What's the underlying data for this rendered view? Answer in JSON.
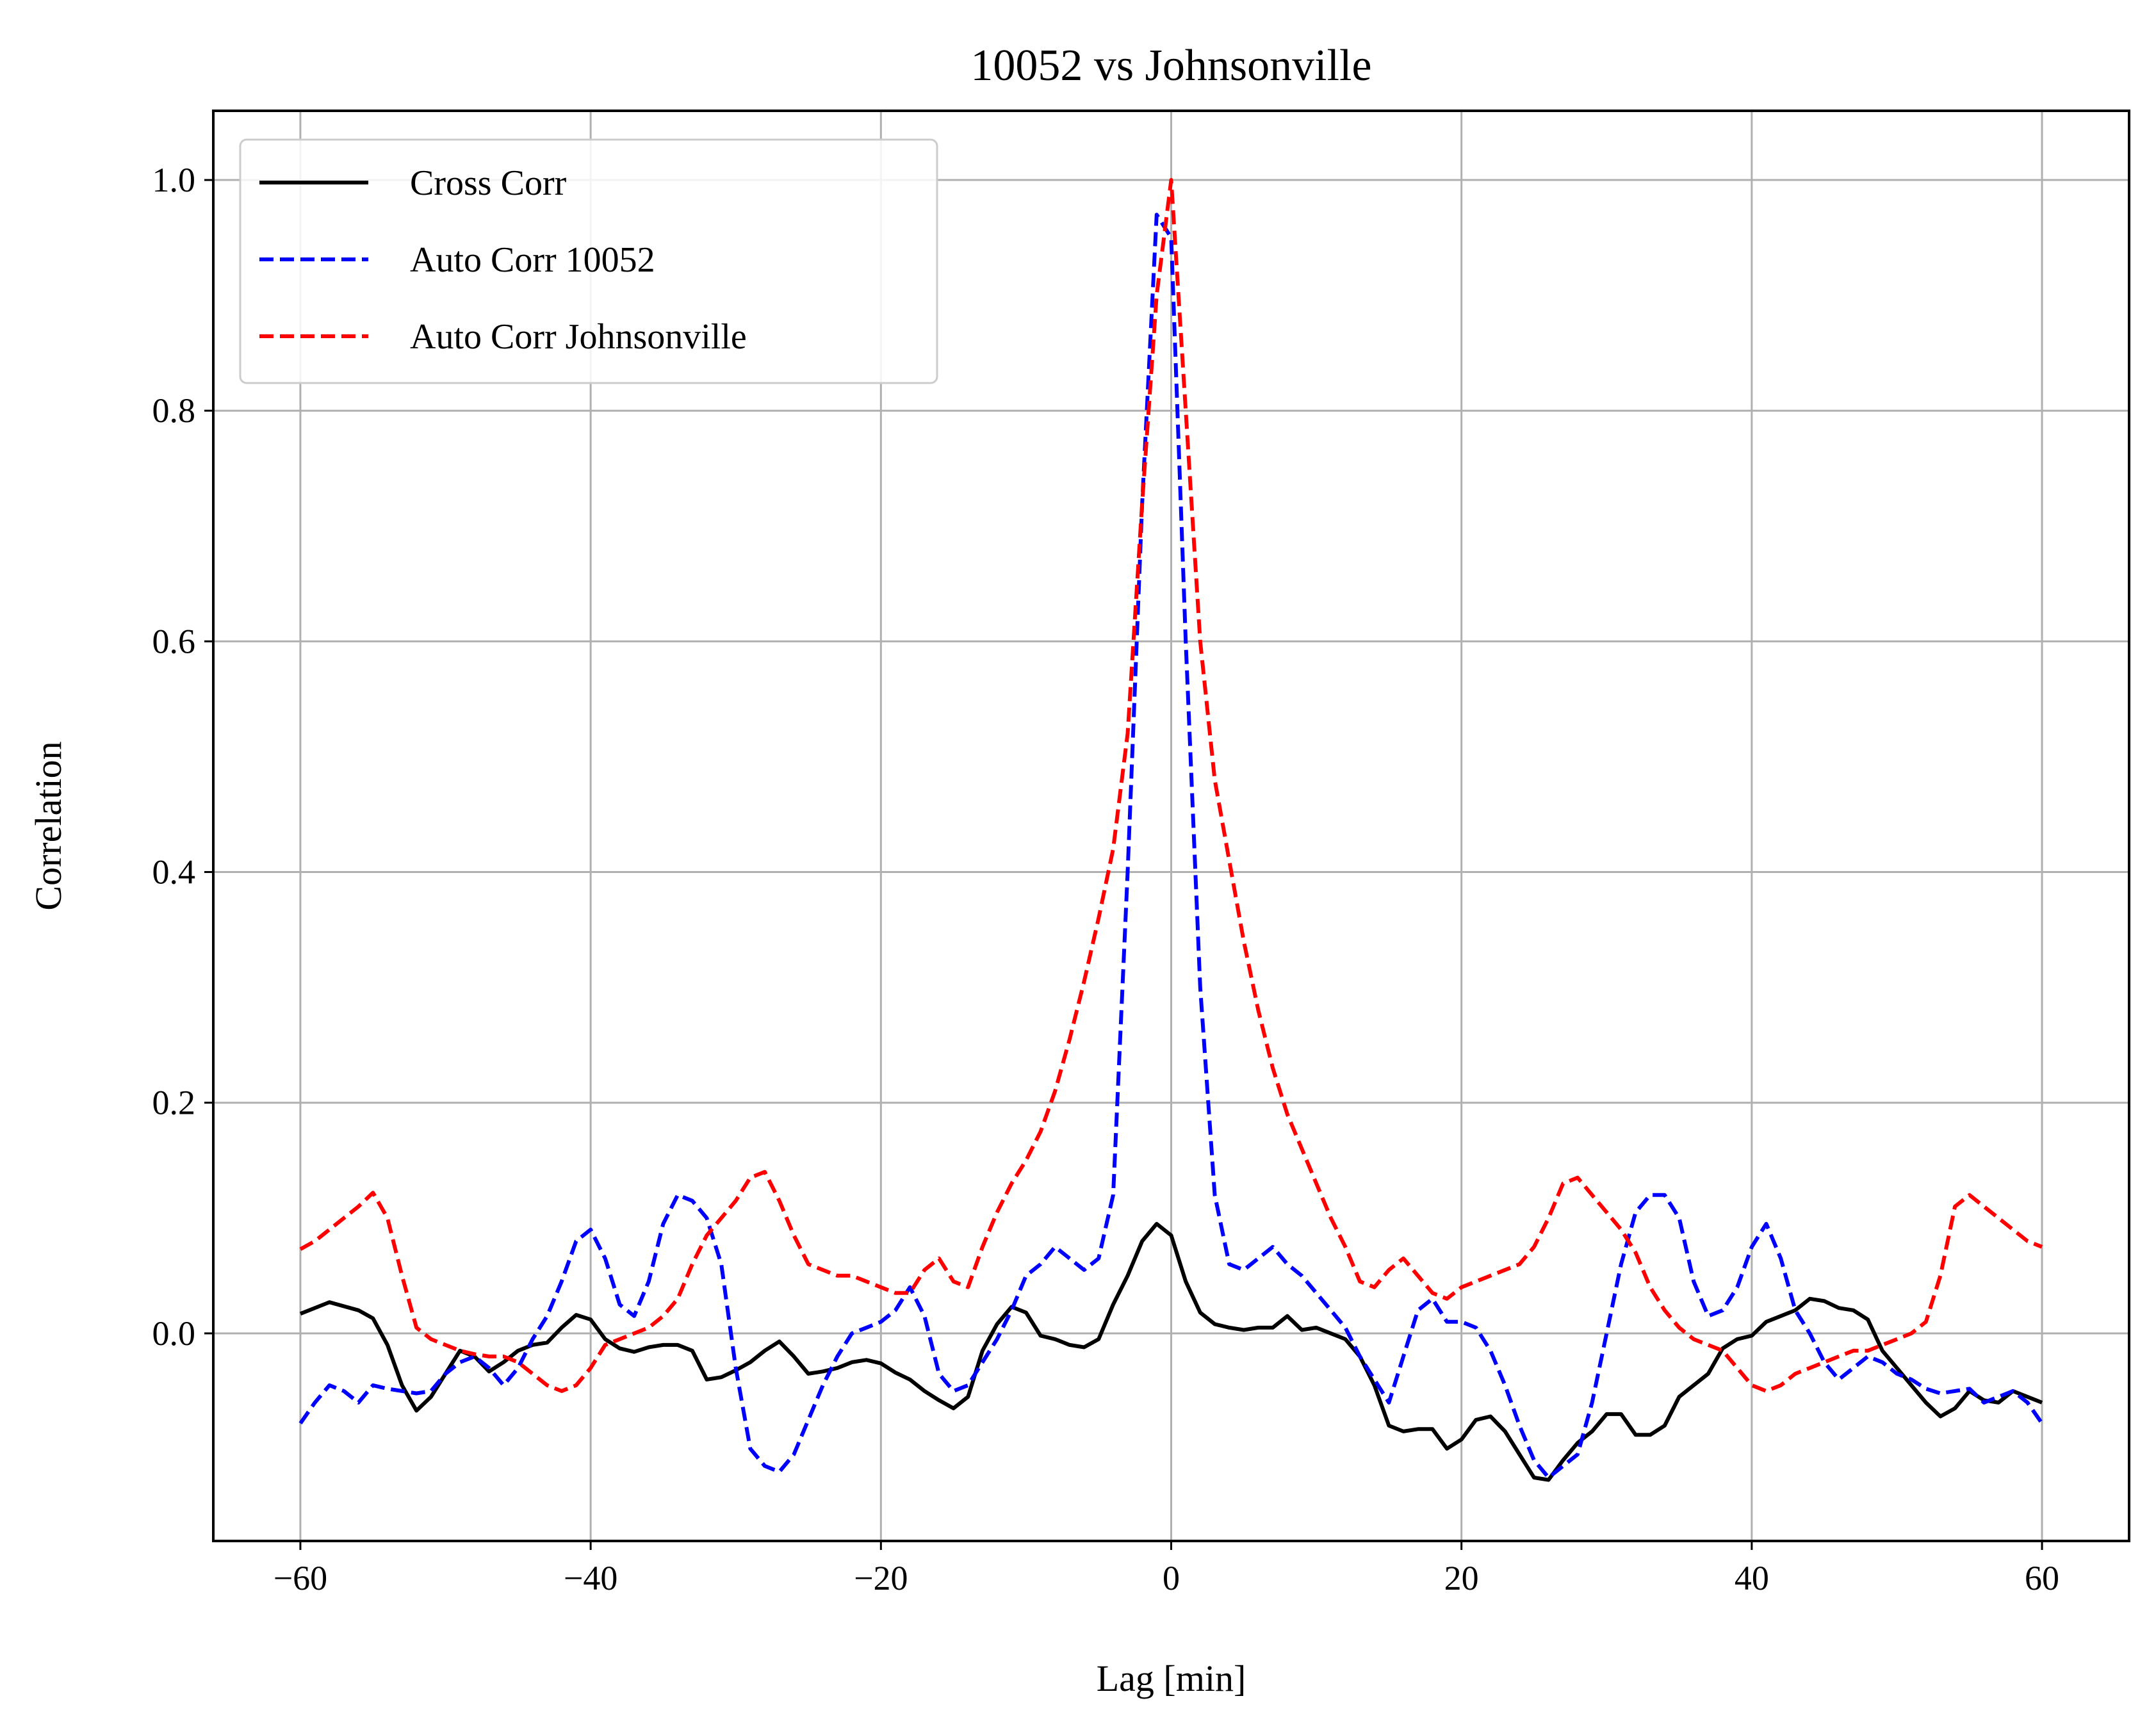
{
  "chart_data": {
    "type": "line",
    "title": "10052 vs Johnsonville",
    "xlabel": "Lag [min]",
    "ylabel": "Correlation",
    "xlim": [
      -66,
      66
    ],
    "ylim": [
      -0.18,
      1.06
    ],
    "x_ticks": [
      -60,
      -40,
      -20,
      0,
      20,
      40,
      60
    ],
    "x_tick_labels": [
      "−60",
      "−40",
      "−20",
      "0",
      "20",
      "40",
      "60"
    ],
    "y_ticks": [
      0.0,
      0.2,
      0.4,
      0.6,
      0.8,
      1.0
    ],
    "y_tick_labels": [
      "0.0",
      "0.2",
      "0.4",
      "0.6",
      "0.8",
      "1.0"
    ],
    "grid": true,
    "legend_position": "top-left",
    "series": [
      {
        "name": "Cross Corr",
        "color": "#000000",
        "style": "solid",
        "x": [
          -60,
          -58,
          -56,
          -55,
          -54,
          -53,
          -52,
          -51,
          -50,
          -49,
          -48,
          -47,
          -46,
          -45,
          -44,
          -43,
          -42,
          -41,
          -40,
          -39,
          -38,
          -37,
          -36,
          -35,
          -34,
          -33,
          -32,
          -31,
          -30,
          -29,
          -28,
          -27,
          -26,
          -25,
          -24,
          -23,
          -22,
          -21,
          -20,
          -19,
          -18,
          -17,
          -16,
          -15,
          -14,
          -13,
          -12,
          -11,
          -10,
          -9,
          -8,
          -7,
          -6,
          -5,
          -4,
          -3,
          -2,
          -1,
          0,
          1,
          2,
          3,
          4,
          5,
          6,
          7,
          8,
          9,
          10,
          11,
          12,
          13,
          14,
          15,
          16,
          17,
          18,
          19,
          20,
          21,
          22,
          23,
          24,
          25,
          26,
          27,
          28,
          29,
          30,
          31,
          32,
          33,
          34,
          35,
          36,
          37,
          38,
          39,
          40,
          41,
          42,
          43,
          44,
          45,
          46,
          47,
          48,
          49,
          50,
          51,
          52,
          53,
          54,
          55,
          56,
          57,
          58,
          59,
          60
        ],
        "y": [
          0.017,
          0.027,
          0.02,
          0.013,
          -0.01,
          -0.045,
          -0.067,
          -0.055,
          -0.035,
          -0.015,
          -0.02,
          -0.033,
          -0.025,
          -0.015,
          -0.01,
          -0.008,
          0.005,
          0.016,
          0.012,
          -0.005,
          -0.013,
          -0.016,
          -0.012,
          -0.01,
          -0.01,
          -0.015,
          -0.04,
          -0.038,
          -0.032,
          -0.025,
          -0.015,
          -0.007,
          -0.02,
          -0.035,
          -0.033,
          -0.03,
          -0.025,
          -0.023,
          -0.026,
          -0.034,
          -0.04,
          -0.05,
          -0.058,
          -0.065,
          -0.055,
          -0.015,
          0.008,
          0.023,
          0.018,
          -0.002,
          -0.005,
          -0.01,
          -0.012,
          -0.005,
          0.025,
          0.05,
          0.08,
          0.095,
          0.085,
          0.045,
          0.018,
          0.008,
          0.005,
          0.003,
          0.005,
          0.005,
          0.015,
          0.003,
          0.005,
          0.0,
          -0.005,
          -0.02,
          -0.045,
          -0.08,
          -0.085,
          -0.083,
          -0.083,
          -0.1,
          -0.092,
          -0.075,
          -0.072,
          -0.085,
          -0.105,
          -0.125,
          -0.127,
          -0.11,
          -0.095,
          -0.085,
          -0.07,
          -0.07,
          -0.088,
          -0.088,
          -0.08,
          -0.055,
          -0.045,
          -0.035,
          -0.013,
          -0.005,
          -0.002,
          0.01,
          0.015,
          0.02,
          0.03,
          0.028,
          0.022,
          0.02,
          0.012,
          -0.015,
          -0.03,
          -0.045,
          -0.06,
          -0.072,
          -0.065,
          -0.05,
          -0.058,
          -0.06,
          -0.05,
          -0.055,
          -0.06
        ],
        "y_note": ""
      },
      {
        "name": "Auto Corr 10052",
        "color": "#0000ff",
        "style": "dashed",
        "x": [
          -60,
          -59,
          -58,
          -57,
          -56,
          -55,
          -54,
          -53,
          -52,
          -51,
          -50,
          -49,
          -48,
          -47,
          -46,
          -45,
          -44,
          -43,
          -42,
          -41,
          -40,
          -39,
          -38,
          -37,
          -36,
          -35,
          -34,
          -33,
          -32,
          -31,
          -30,
          -29,
          -28,
          -27,
          -26,
          -25,
          -24,
          -23,
          -22,
          -21,
          -20,
          -19,
          -18,
          -17,
          -16,
          -15,
          -14,
          -13,
          -12,
          -11,
          -10,
          -9,
          -8,
          -7,
          -6,
          -5,
          -4,
          -3,
          -2,
          -1,
          0,
          1,
          2,
          3,
          4,
          5,
          6,
          7,
          8,
          9,
          10,
          11,
          12,
          13,
          14,
          15,
          16,
          17,
          18,
          19,
          20,
          21,
          22,
          23,
          24,
          25,
          26,
          27,
          28,
          29,
          30,
          31,
          32,
          33,
          34,
          35,
          36,
          37,
          38,
          39,
          40,
          41,
          42,
          43,
          44,
          45,
          46,
          47,
          48,
          49,
          50,
          51,
          52,
          53,
          54,
          55,
          56,
          57,
          58,
          59,
          60
        ],
        "y": [
          -0.078,
          -0.06,
          -0.045,
          -0.05,
          -0.06,
          -0.045,
          -0.048,
          -0.05,
          -0.052,
          -0.05,
          -0.035,
          -0.025,
          -0.02,
          -0.03,
          -0.045,
          -0.03,
          -0.005,
          0.015,
          0.045,
          0.08,
          0.09,
          0.065,
          0.025,
          0.015,
          0.045,
          0.095,
          0.12,
          0.115,
          0.1,
          0.06,
          -0.03,
          -0.1,
          -0.115,
          -0.12,
          -0.105,
          -0.075,
          -0.045,
          -0.02,
          0.0,
          0.005,
          0.01,
          0.02,
          0.04,
          0.015,
          -0.035,
          -0.05,
          -0.045,
          -0.025,
          -0.005,
          0.02,
          0.05,
          0.06,
          0.075,
          0.065,
          0.055,
          0.065,
          0.12,
          0.4,
          0.72,
          0.97,
          0.95,
          0.6,
          0.3,
          0.12,
          0.06,
          0.055,
          0.065,
          0.075,
          0.06,
          0.05,
          0.035,
          0.02,
          0.005,
          -0.02,
          -0.04,
          -0.06,
          -0.02,
          0.02,
          0.03,
          0.01,
          0.01,
          0.005,
          -0.015,
          -0.045,
          -0.08,
          -0.11,
          -0.125,
          -0.115,
          -0.105,
          -0.06,
          0.0,
          0.06,
          0.105,
          0.12,
          0.12,
          0.1,
          0.045,
          0.015,
          0.02,
          0.04,
          0.075,
          0.095,
          0.065,
          0.02,
          0.0,
          -0.025,
          -0.04,
          -0.03,
          -0.02,
          -0.025,
          -0.035,
          -0.04,
          -0.048,
          -0.052,
          -0.05,
          -0.048,
          -0.06,
          -0.055,
          -0.05,
          -0.06,
          -0.078
        ],
        "y_note": ""
      },
      {
        "name": "Auto Corr Johnsonville",
        "color": "#ff0000",
        "style": "dashed",
        "x": [
          -60,
          -59,
          -58,
          -57,
          -56,
          -55,
          -54,
          -53,
          -52,
          -51,
          -50,
          -49,
          -48,
          -47,
          -46,
          -45,
          -44,
          -43,
          -42,
          -41,
          -40,
          -39,
          -38,
          -37,
          -36,
          -35,
          -34,
          -33,
          -32,
          -31,
          -30,
          -29,
          -28,
          -27,
          -26,
          -25,
          -24,
          -23,
          -22,
          -21,
          -20,
          -19,
          -18,
          -17,
          -16,
          -15,
          -14,
          -13,
          -12,
          -11,
          -10,
          -9,
          -8,
          -7,
          -6,
          -5,
          -4,
          -3,
          -2,
          -1,
          0,
          1,
          2,
          3,
          4,
          5,
          6,
          7,
          8,
          9,
          10,
          11,
          12,
          13,
          14,
          15,
          16,
          17,
          18,
          19,
          20,
          21,
          22,
          23,
          24,
          25,
          26,
          27,
          28,
          29,
          30,
          31,
          32,
          33,
          34,
          35,
          36,
          37,
          38,
          39,
          40,
          41,
          42,
          43,
          44,
          45,
          46,
          47,
          48,
          49,
          50,
          51,
          52,
          53,
          54,
          55,
          56,
          57,
          58,
          59,
          60
        ],
        "y": [
          0.073,
          0.08,
          0.09,
          0.1,
          0.11,
          0.122,
          0.1,
          0.05,
          0.005,
          -0.005,
          -0.01,
          -0.015,
          -0.018,
          -0.02,
          -0.02,
          -0.025,
          -0.035,
          -0.045,
          -0.05,
          -0.045,
          -0.03,
          -0.01,
          -0.005,
          0.0,
          0.005,
          0.015,
          0.03,
          0.06,
          0.085,
          0.1,
          0.115,
          0.135,
          0.14,
          0.115,
          0.085,
          0.06,
          0.055,
          0.05,
          0.05,
          0.045,
          0.04,
          0.035,
          0.035,
          0.055,
          0.065,
          0.045,
          0.04,
          0.075,
          0.105,
          0.13,
          0.15,
          0.175,
          0.21,
          0.255,
          0.305,
          0.36,
          0.42,
          0.52,
          0.72,
          0.9,
          1.0,
          0.8,
          0.6,
          0.48,
          0.41,
          0.34,
          0.28,
          0.23,
          0.19,
          0.16,
          0.13,
          0.1,
          0.075,
          0.045,
          0.04,
          0.055,
          0.065,
          0.05,
          0.035,
          0.03,
          0.04,
          0.045,
          0.05,
          0.055,
          0.06,
          0.075,
          0.1,
          0.13,
          0.135,
          0.12,
          0.105,
          0.09,
          0.07,
          0.04,
          0.02,
          0.005,
          -0.005,
          -0.01,
          -0.015,
          -0.03,
          -0.045,
          -0.05,
          -0.045,
          -0.035,
          -0.03,
          -0.025,
          -0.02,
          -0.015,
          -0.015,
          -0.01,
          -0.005,
          0.0,
          0.01,
          0.05,
          0.11,
          0.12,
          0.11,
          0.1,
          0.09,
          0.08,
          0.075
        ],
        "y_note": ""
      }
    ]
  }
}
